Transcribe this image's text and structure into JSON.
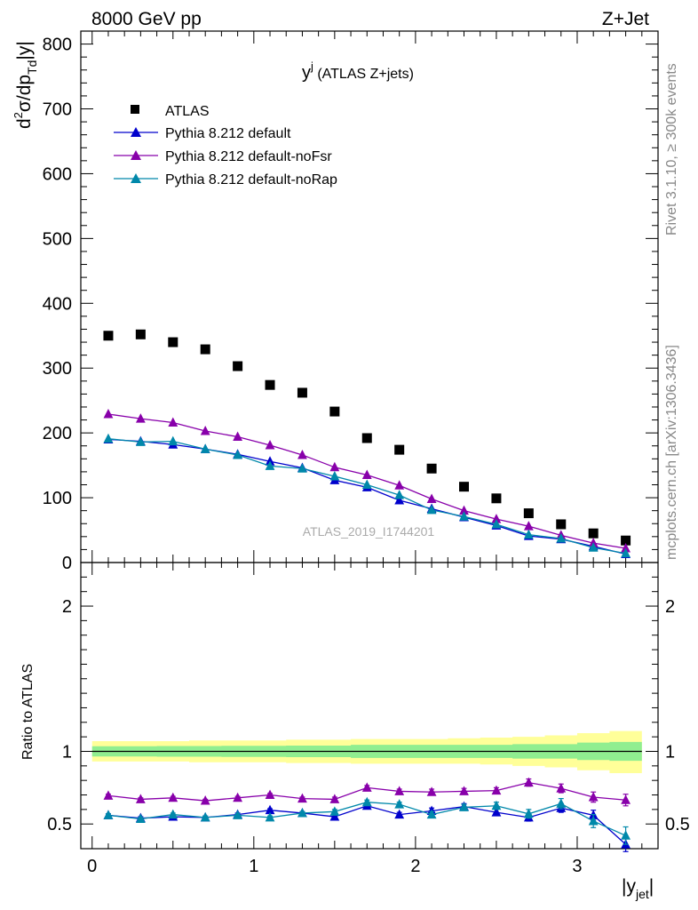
{
  "header": {
    "left": "8000 GeV pp",
    "right": "Z+Jet"
  },
  "side_labels": {
    "rivet": "Rivet 3.1.10, ≥ 300k events",
    "mcplots": "mcplots.cern.ch [arXiv:1306.3436]"
  },
  "watermark": "ATLAS_2019_I1744201",
  "chart_data": [
    {
      "type": "scatter",
      "title_main": "y",
      "title_sup": "j",
      "title_rest": " (ATLAS Z+jets)",
      "ylabel_parts": [
        "d",
        "2",
        "σ/dp",
        "Td",
        "|y|"
      ],
      "xlabel_main": "|y",
      "xlabel_sub": "jet",
      "xlabel_end": "|",
      "xlim": [
        -0.07,
        3.5
      ],
      "ylim": [
        0,
        820
      ],
      "yticks": [
        0,
        100,
        200,
        300,
        400,
        500,
        600,
        700,
        800
      ],
      "ytick_labels": [
        "0",
        "100",
        "200",
        "300",
        "400",
        "500",
        "600",
        "700",
        "800"
      ],
      "x": [
        0.1,
        0.3,
        0.5,
        0.7,
        0.9,
        1.1,
        1.3,
        1.5,
        1.7,
        1.9,
        2.1,
        2.3,
        2.5,
        2.7,
        2.9,
        3.1,
        3.3
      ],
      "legend_placement": "top-left",
      "series": [
        {
          "name": "ATLAS",
          "marker": "square",
          "color": "#000000",
          "values": [
            350,
            352,
            340,
            329,
            303,
            274,
            262,
            233,
            192,
            174,
            145,
            117,
            99,
            76,
            59,
            45,
            34
          ]
        },
        {
          "name": "Pythia 8.212 default",
          "marker": "triangle",
          "color": "#0000cc",
          "values": [
            190,
            187,
            182,
            175,
            167,
            156,
            146,
            127,
            116,
            96,
            83,
            70,
            57,
            41,
            36,
            25,
            13
          ]
        },
        {
          "name": "Pythia 8.212 default-noFsr",
          "marker": "triangle",
          "color": "#8800aa",
          "values": [
            229,
            222,
            216,
            203,
            194,
            181,
            166,
            147,
            135,
            119,
            98,
            80,
            67,
            56,
            42,
            30,
            22
          ]
        },
        {
          "name": "Pythia 8.212 default-noRap",
          "marker": "triangle",
          "color": "#0088aa",
          "values": [
            191,
            186,
            187,
            175,
            166,
            149,
            145,
            133,
            120,
            104,
            81,
            71,
            59,
            43,
            37,
            23,
            14
          ]
        }
      ]
    },
    {
      "type": "line",
      "ylabel": "Ratio to ATLAS",
      "xlim": [
        -0.07,
        3.5
      ],
      "ylim": [
        0.33,
        2.3
      ],
      "xticks": [
        0,
        1,
        2,
        3
      ],
      "xtick_labels": [
        "0",
        "1",
        "2",
        "3"
      ],
      "yticks": [
        0.5,
        1,
        2
      ],
      "ytick_labels": [
        "0.5",
        "1",
        "2"
      ],
      "x_edges": [
        0,
        0.2,
        0.4,
        0.6,
        0.8,
        1.0,
        1.2,
        1.4,
        1.6,
        1.8,
        2.0,
        2.2,
        2.4,
        2.6,
        2.8,
        3.0,
        3.2,
        3.4
      ],
      "band_inner": {
        "color": "#90ee90",
        "low": [
          0.965,
          0.965,
          0.963,
          0.963,
          0.962,
          0.962,
          0.96,
          0.96,
          0.955,
          0.955,
          0.955,
          0.955,
          0.955,
          0.95,
          0.95,
          0.94,
          0.935
        ],
        "high": [
          1.035,
          1.035,
          1.037,
          1.037,
          1.038,
          1.038,
          1.04,
          1.04,
          1.045,
          1.045,
          1.045,
          1.045,
          1.045,
          1.05,
          1.05,
          1.06,
          1.065
        ]
      },
      "band_outer": {
        "color": "#ffff99",
        "low": [
          0.93,
          0.93,
          0.93,
          0.925,
          0.925,
          0.925,
          0.92,
          0.92,
          0.915,
          0.915,
          0.915,
          0.915,
          0.91,
          0.9,
          0.89,
          0.87,
          0.85
        ],
        "high": [
          1.07,
          1.07,
          1.07,
          1.075,
          1.075,
          1.075,
          1.08,
          1.08,
          1.085,
          1.085,
          1.085,
          1.09,
          1.095,
          1.1,
          1.11,
          1.125,
          1.14
        ]
      },
      "x": [
        0.1,
        0.3,
        0.5,
        0.7,
        0.9,
        1.1,
        1.3,
        1.5,
        1.7,
        1.9,
        2.1,
        2.3,
        2.5,
        2.7,
        2.9,
        3.1,
        3.3
      ],
      "series": [
        {
          "name": "Pythia 8.212 default",
          "color": "#0000cc",
          "values": [
            0.56,
            0.54,
            0.55,
            0.545,
            0.565,
            0.595,
            0.575,
            0.55,
            0.625,
            0.565,
            0.59,
            0.62,
            0.58,
            0.545,
            0.61,
            0.56,
            0.36
          ],
          "errors": [
            0.01,
            0.01,
            0.01,
            0.01,
            0.01,
            0.01,
            0.01,
            0.015,
            0.015,
            0.015,
            0.02,
            0.02,
            0.02,
            0.025,
            0.03,
            0.035,
            0.05
          ]
        },
        {
          "name": "Pythia 8.212 default-noFsr",
          "color": "#8800aa",
          "values": [
            0.695,
            0.67,
            0.68,
            0.66,
            0.68,
            0.7,
            0.675,
            0.67,
            0.75,
            0.725,
            0.72,
            0.725,
            0.73,
            0.785,
            0.745,
            0.685,
            0.665
          ],
          "errors": [
            0.01,
            0.01,
            0.01,
            0.01,
            0.01,
            0.01,
            0.01,
            0.015,
            0.015,
            0.015,
            0.02,
            0.02,
            0.02,
            0.025,
            0.03,
            0.035,
            0.04
          ]
        },
        {
          "name": "Pythia 8.212 default-noRap",
          "color": "#0088aa",
          "values": [
            0.56,
            0.535,
            0.565,
            0.545,
            0.56,
            0.545,
            0.575,
            0.585,
            0.65,
            0.635,
            0.565,
            0.615,
            0.625,
            0.57,
            0.64,
            0.52,
            0.42
          ],
          "errors": [
            0.01,
            0.01,
            0.01,
            0.01,
            0.01,
            0.01,
            0.01,
            0.015,
            0.015,
            0.015,
            0.02,
            0.02,
            0.025,
            0.03,
            0.035,
            0.045,
            0.06
          ]
        }
      ]
    }
  ]
}
